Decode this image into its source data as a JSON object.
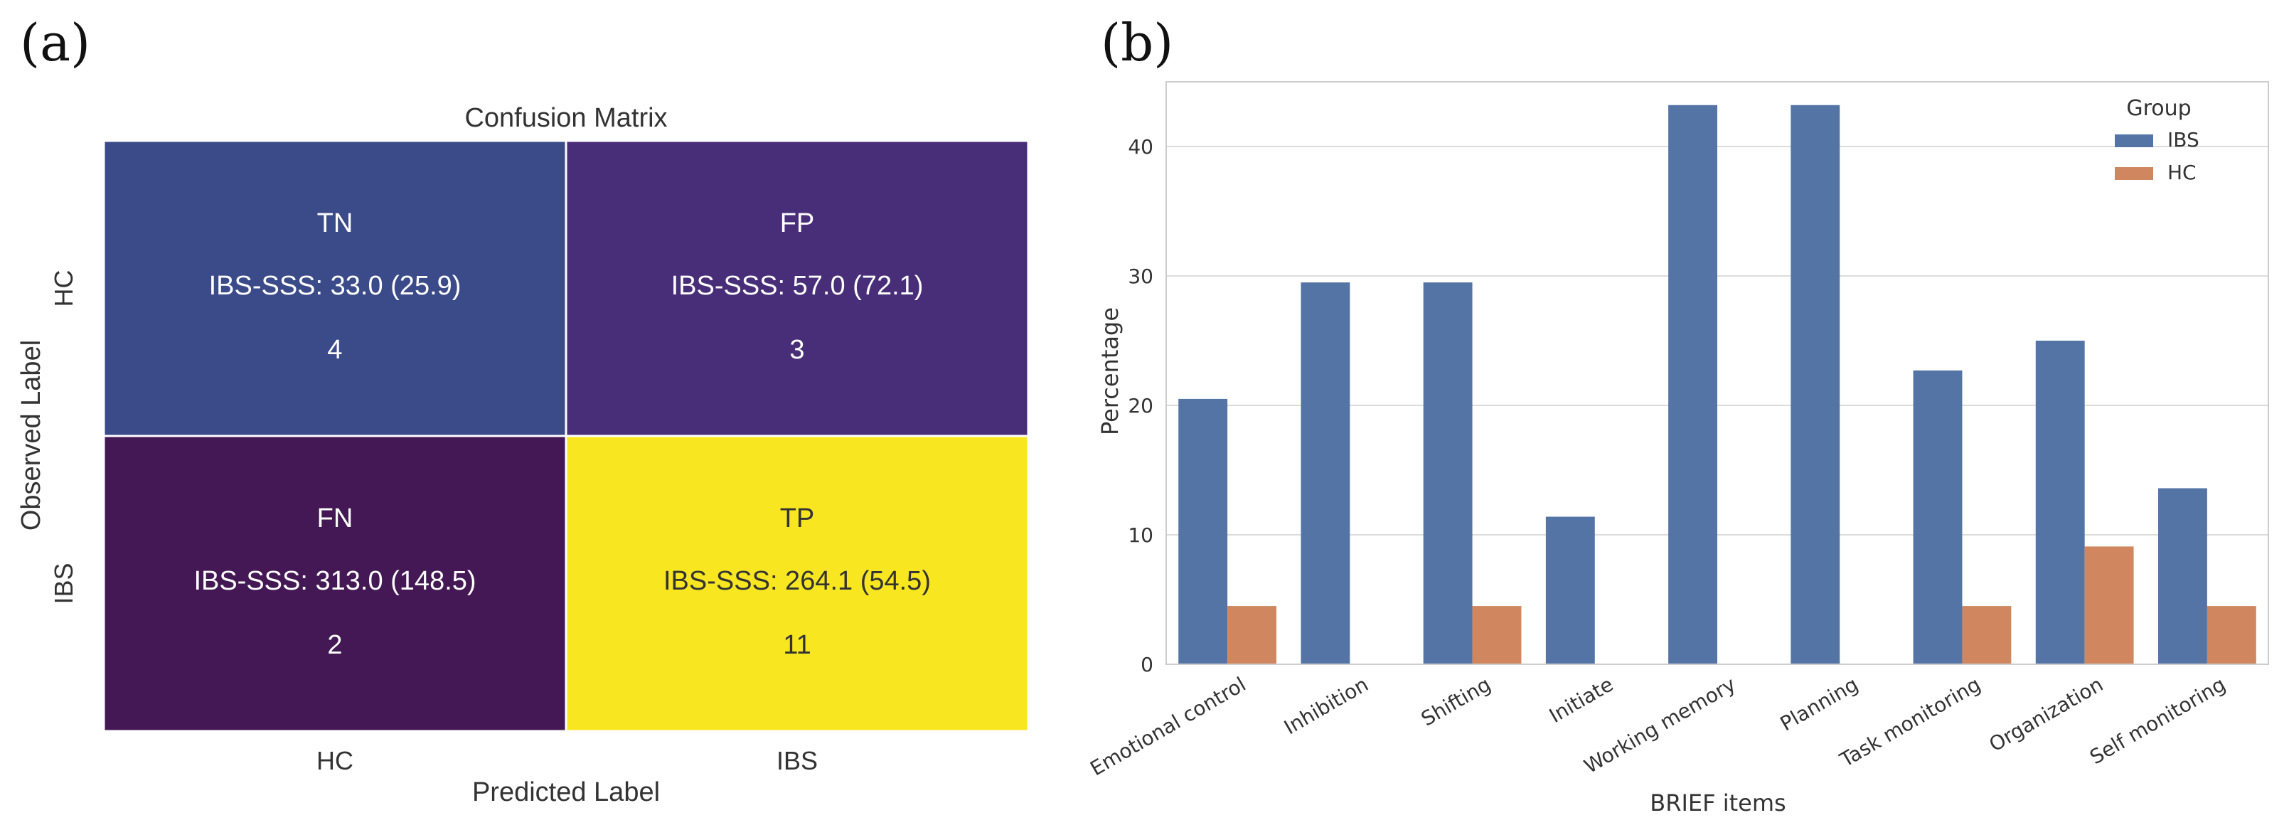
{
  "panel_labels": {
    "a": "(a)",
    "b": "(b)"
  },
  "chart_data": [
    {
      "type": "heatmap",
      "title": "Confusion Matrix",
      "xlabel": "Predicted Label",
      "ylabel": "Observed Label",
      "x_categories": [
        "HC",
        "IBS"
      ],
      "y_categories": [
        "HC",
        "IBS"
      ],
      "colormap": "viridis",
      "cells": [
        {
          "row": 0,
          "col": 0,
          "tag": "TN",
          "detail": "IBS-SSS: 33.0 (25.9)",
          "count": 4,
          "count_label": "4",
          "color": "#3b4b8a",
          "text_color": "#ffffff"
        },
        {
          "row": 0,
          "col": 1,
          "tag": "FP",
          "detail": "IBS-SSS: 57.0 (72.1)",
          "count": 3,
          "count_label": "3",
          "color": "#482e79",
          "text_color": "#ffffff"
        },
        {
          "row": 1,
          "col": 0,
          "tag": "FN",
          "detail": "IBS-SSS: 313.0 (148.5)",
          "count": 2,
          "count_label": "2",
          "color": "#431854",
          "text_color": "#ffffff"
        },
        {
          "row": 1,
          "col": 1,
          "tag": "TP",
          "detail": "IBS-SSS: 264.1 (54.5)",
          "count": 11,
          "count_label": "11",
          "color": "#f8e620",
          "text_color": "#333333"
        }
      ]
    },
    {
      "type": "bar",
      "title": "",
      "xlabel": "BRIEF items",
      "ylabel": "Percentage",
      "ylim": [
        0,
        45
      ],
      "yticks": [
        0,
        10,
        20,
        30,
        40
      ],
      "grid": true,
      "categories": [
        "Emotional control",
        "Inhibition",
        "Shifting",
        "Initiate",
        "Working memory",
        "Planning",
        "Task monitoring",
        "Organization",
        "Self monitoring"
      ],
      "legend": {
        "title": "Group",
        "placement": "top-right"
      },
      "series": [
        {
          "name": "IBS",
          "color": "#5574a6",
          "values": [
            20.5,
            29.5,
            29.5,
            11.4,
            43.2,
            43.2,
            22.7,
            25.0,
            13.6
          ]
        },
        {
          "name": "HC",
          "color": "#d0865e",
          "values": [
            4.5,
            0,
            4.5,
            0,
            0,
            0,
            4.5,
            9.1,
            4.5
          ]
        }
      ]
    }
  ]
}
